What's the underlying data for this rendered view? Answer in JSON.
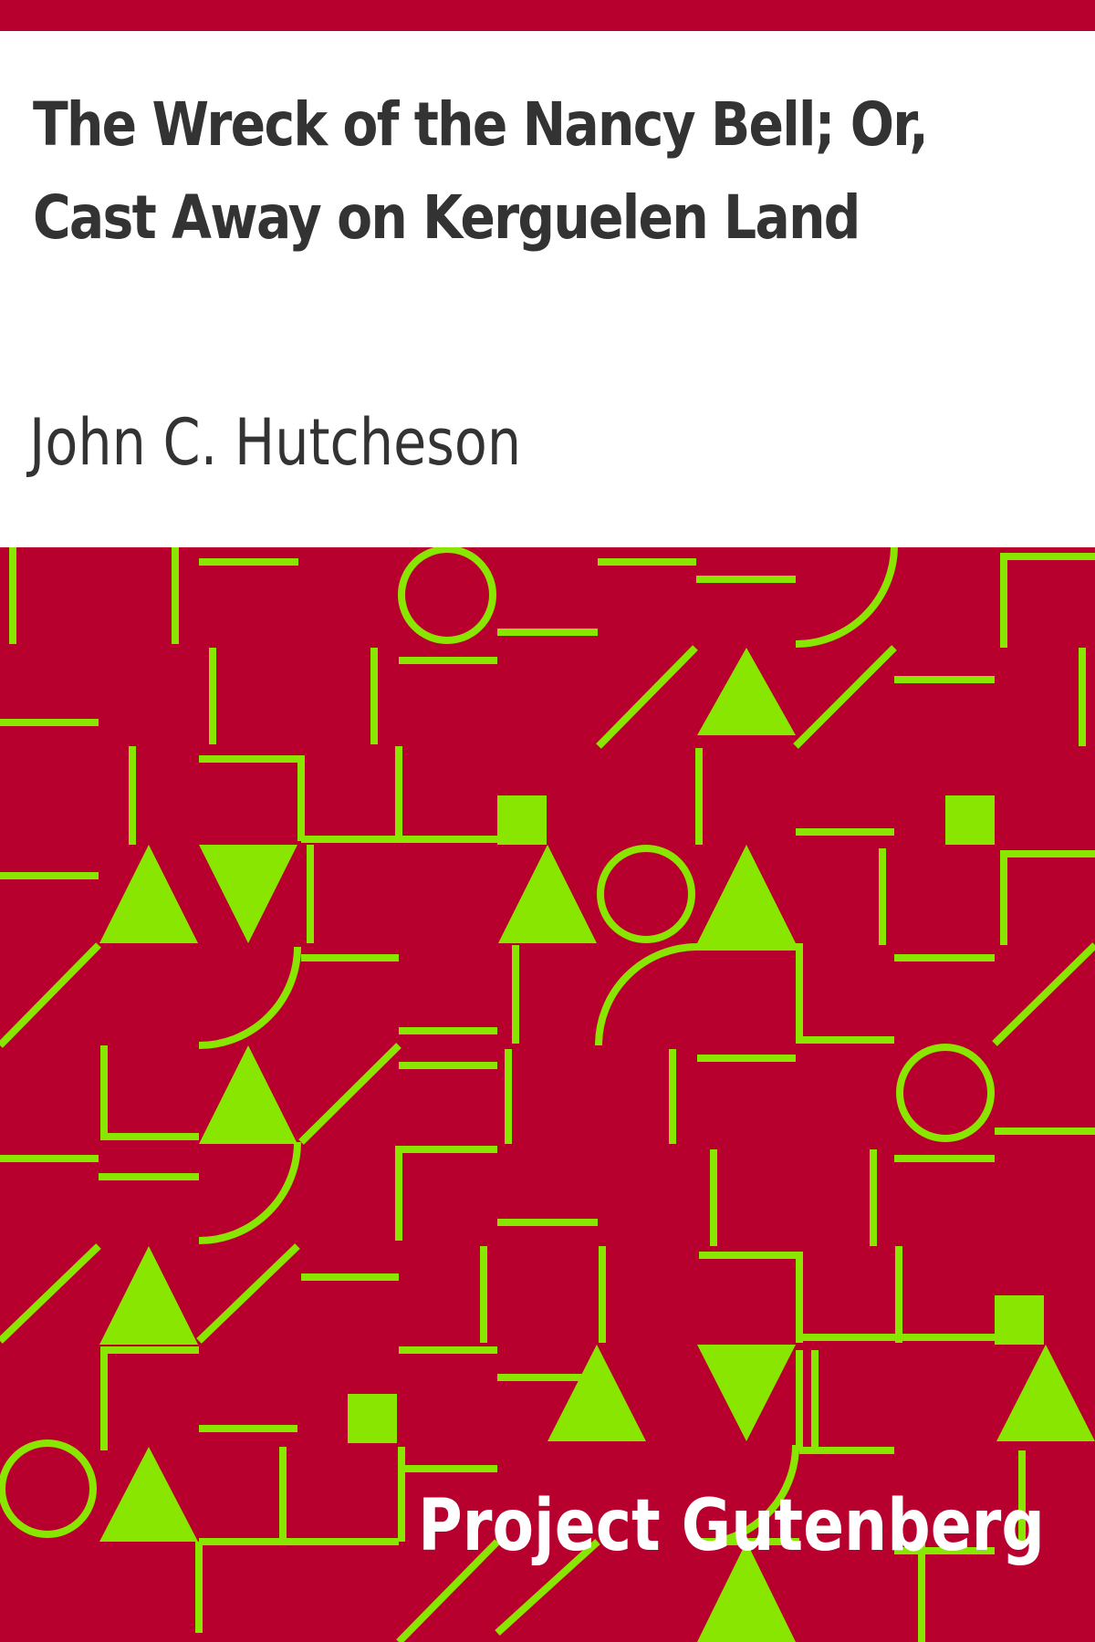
{
  "cover": {
    "title": "The Wreck of the Nancy Bell; Or, Cast Away on Kerguelen Land",
    "author": "John C. Hutcheson",
    "publisher": "Project Gutenberg"
  },
  "colors": {
    "background": "#ffffff",
    "band": "#b8002e",
    "pattern": "#88e600",
    "title_text": "#333333",
    "publisher_text": "#ffffff"
  },
  "decoration": {
    "pattern_icon": "geometric-pattern-icon"
  }
}
